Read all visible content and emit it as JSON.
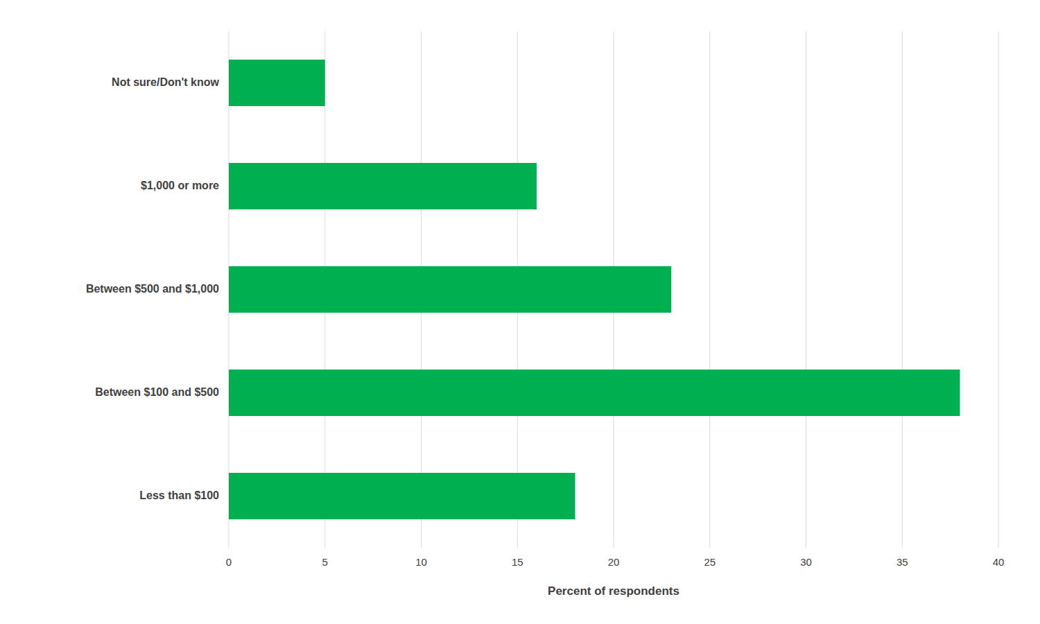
{
  "chart_data": {
    "type": "bar",
    "orientation": "horizontal",
    "categories": [
      "Less than $100",
      "Between $100 and $500",
      "Between $500 and $1,000",
      "$1,000 or more",
      "Not sure/Don't know"
    ],
    "values": [
      18,
      38,
      23,
      16,
      5
    ],
    "color": "#00B050",
    "xlabel": "Percent of respondents",
    "xlim": [
      0,
      40
    ],
    "xticks": [
      0,
      5,
      10,
      15,
      20,
      25,
      30,
      35,
      40
    ],
    "grid": true
  }
}
